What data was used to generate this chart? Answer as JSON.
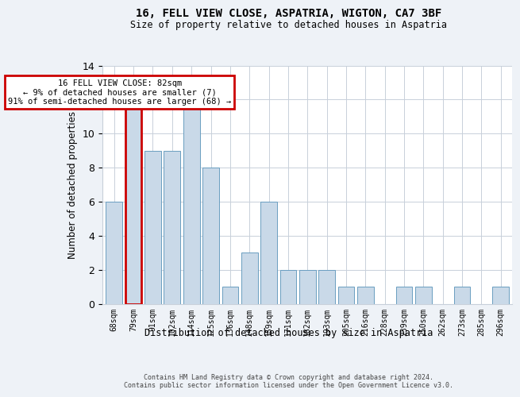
{
  "title": "16, FELL VIEW CLOSE, ASPATRIA, WIGTON, CA7 3BF",
  "subtitle": "Size of property relative to detached houses in Aspatria",
  "xlabel": "Distribution of detached houses by size in Aspatria",
  "ylabel": "Number of detached properties",
  "categories": [
    "68sqm",
    "79sqm",
    "91sqm",
    "102sqm",
    "114sqm",
    "125sqm",
    "136sqm",
    "148sqm",
    "159sqm",
    "171sqm",
    "182sqm",
    "193sqm",
    "205sqm",
    "216sqm",
    "228sqm",
    "239sqm",
    "250sqm",
    "262sqm",
    "273sqm",
    "285sqm",
    "296sqm"
  ],
  "values": [
    6,
    12,
    9,
    9,
    12,
    8,
    1,
    3,
    6,
    2,
    2,
    2,
    1,
    1,
    0,
    1,
    1,
    0,
    1,
    0,
    1
  ],
  "highlight_index": 1,
  "bar_color": "#c9d9e8",
  "bar_edge_color": "#6a9ec0",
  "highlight_edge_color": "#cc0000",
  "annotation_box_text": "16 FELL VIEW CLOSE: 82sqm\n← 9% of detached houses are smaller (7)\n91% of semi-detached houses are larger (68) →",
  "annotation_box_color": "#cc0000",
  "ylim": [
    0,
    14
  ],
  "yticks": [
    0,
    2,
    4,
    6,
    8,
    10,
    12,
    14
  ],
  "footer_line1": "Contains HM Land Registry data © Crown copyright and database right 2024.",
  "footer_line2": "Contains public sector information licensed under the Open Government Licence v3.0.",
  "background_color": "#eef2f7",
  "plot_bg_color": "#ffffff",
  "grid_color": "#c8d0da"
}
